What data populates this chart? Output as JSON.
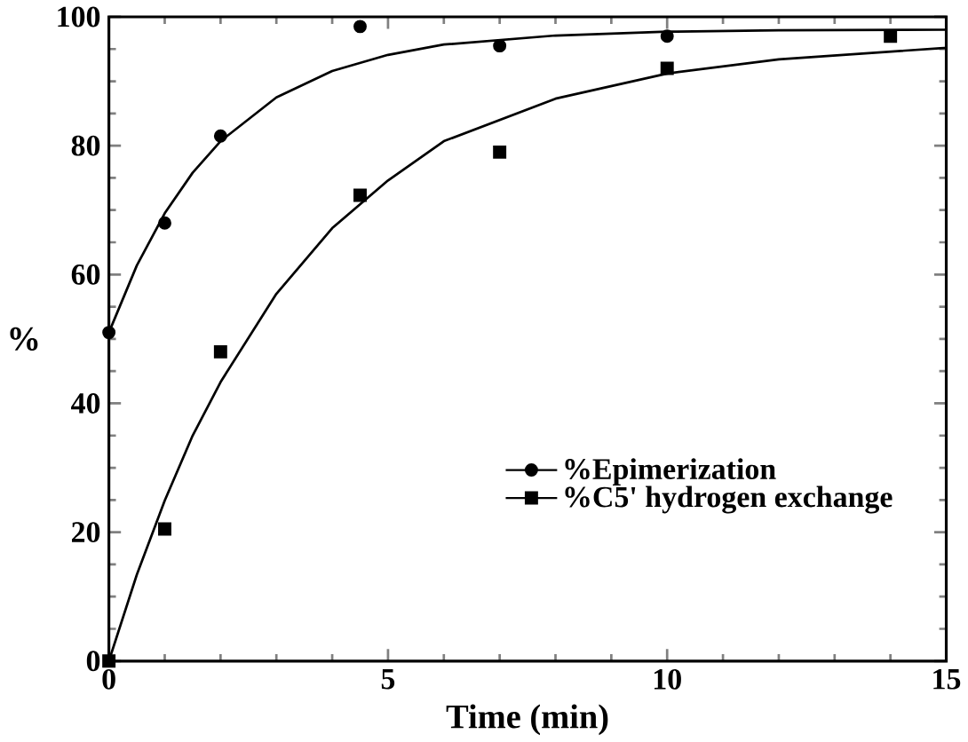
{
  "chart_data": {
    "type": "scatter",
    "xlabel": "Time (min)",
    "ylabel": "%",
    "xlim": [
      0,
      15
    ],
    "ylim": [
      0,
      100
    ],
    "xticks": [
      0,
      5,
      10,
      15
    ],
    "yticks": [
      0,
      20,
      40,
      60,
      80,
      100
    ],
    "grid": false,
    "legend": "bottom right",
    "series": [
      {
        "name": "%Epimerization",
        "color": "#000000",
        "marker": "circle",
        "x": [
          0,
          1,
          2,
          4.5,
          7,
          10
        ],
        "values": [
          51,
          68,
          81.5,
          98.5,
          95.5,
          97
        ]
      },
      {
        "name": "%C5' hydrogen exchange",
        "color": "#000000",
        "marker": "square",
        "x": [
          0,
          1,
          2,
          4.5,
          7,
          10,
          14
        ],
        "values": [
          0,
          20.5,
          48,
          72.3,
          79,
          92,
          97
        ]
      },
      {
        "type": "line",
        "color": "#000000",
        "marker": "none",
        "line_style": "solid",
        "x": [
          0,
          0.5,
          1,
          1.5,
          2,
          3,
          4,
          5,
          6,
          8,
          10,
          12,
          15
        ],
        "values": [
          51,
          61.4,
          69.5,
          75.8,
          80.7,
          87.5,
          91.6,
          94.1,
          95.7,
          97.1,
          97.7,
          97.9,
          98
        ]
      },
      {
        "type": "line",
        "color": "#000000",
        "marker": "none",
        "line_style": "solid",
        "x": [
          0,
          0.5,
          1,
          1.5,
          2,
          3,
          4,
          5,
          6,
          8,
          10,
          12,
          15
        ],
        "values": [
          0,
          13.4,
          24.9,
          35,
          43.3,
          57,
          67.2,
          74.6,
          80.7,
          87.3,
          91.2,
          93.4,
          95.2
        ]
      }
    ]
  }
}
